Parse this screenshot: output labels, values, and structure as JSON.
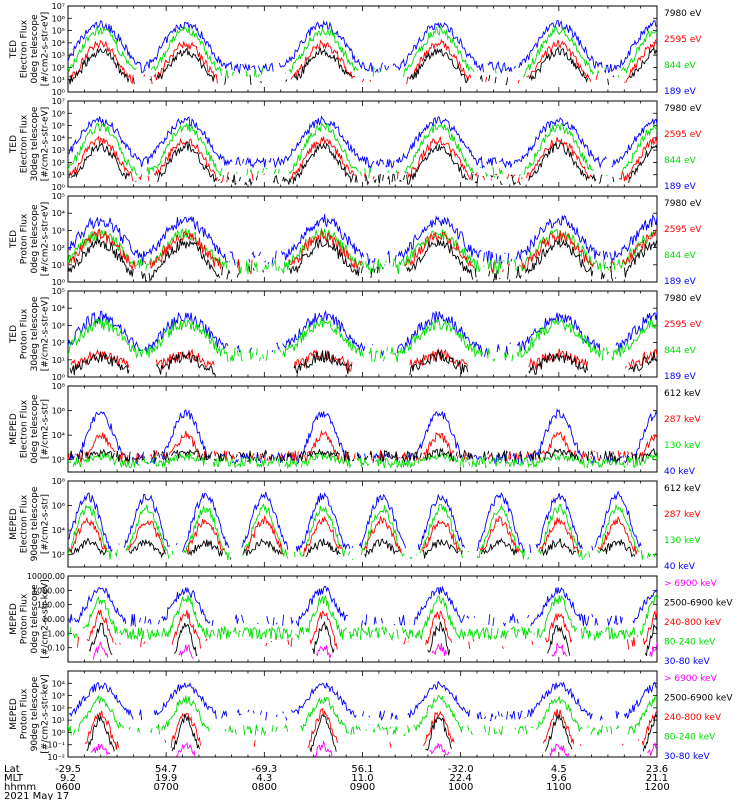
{
  "date_label": "2021 May 17",
  "colors": {
    "black": "#000000",
    "red": "#ff0000",
    "green": "#00dd00",
    "blue": "#0000ff",
    "magenta": "#ff00ff"
  },
  "footer": {
    "row_labels": [
      "Lat",
      "MLT",
      "hhmm"
    ],
    "columns": [
      {
        "lat": "-29.5",
        "mlt": "9.2",
        "hhmm": "0600"
      },
      {
        "lat": "54.7",
        "mlt": "19.9",
        "hhmm": "0700"
      },
      {
        "lat": "-69.3",
        "mlt": "4.3",
        "hhmm": "0800"
      },
      {
        "lat": "56.1",
        "mlt": "11.0",
        "hhmm": "0900"
      },
      {
        "lat": "-32.0",
        "mlt": "22.4",
        "hhmm": "1000"
      },
      {
        "lat": "4.5",
        "mlt": "9.6",
        "hhmm": "1100"
      },
      {
        "lat": "23.6",
        "mlt": "21.1",
        "hhmm": "1200"
      }
    ]
  },
  "chart_data": [
    {
      "type": "line",
      "ylabel": [
        "TED",
        "Electron Flux",
        "0deg telescope",
        "[#/cm2-s-str-eV]"
      ],
      "y_scale": "log",
      "ylim_exp": [
        0,
        7
      ],
      "y_ticks": [
        {
          "exp": 0,
          "text": "10⁰"
        },
        {
          "exp": 1,
          "text": "10¹"
        },
        {
          "exp": 2,
          "text": "10²"
        },
        {
          "exp": 3,
          "text": "10³"
        },
        {
          "exp": 4,
          "text": "10⁴"
        },
        {
          "exp": 5,
          "text": "10⁵"
        },
        {
          "exp": 6,
          "text": "10⁶"
        },
        {
          "exp": 7,
          "text": "10⁷"
        }
      ],
      "x_time_range": [
        "0600",
        "1200"
      ],
      "passes": [
        0.33,
        1.2,
        2.6,
        3.78,
        5.0,
        6.0
      ],
      "series": [
        {
          "name": "7980 eV",
          "color": "#000000",
          "peak": 3.3,
          "floor": 1.0,
          "floor_density": 0.25,
          "pass_width": 0.3
        },
        {
          "name": "2595 eV",
          "color": "#ff0000",
          "peak": 3.9,
          "floor": 1.0,
          "floor_density": 0.2,
          "pass_width": 0.33
        },
        {
          "name": "844 eV",
          "color": "#00dd00",
          "peak": 5.0,
          "floor": 1.6,
          "floor_density": 0.35,
          "pass_width": 0.36
        },
        {
          "name": "189 eV",
          "color": "#0000ff",
          "peak": 5.5,
          "floor": 2.0,
          "floor_density": 0.85,
          "pass_width": 0.42
        }
      ]
    },
    {
      "type": "line",
      "ylabel": [
        "TED",
        "Electron Flux",
        "30deg telescope",
        "[#/cm2-s-str-eV]"
      ],
      "y_scale": "log",
      "ylim_exp": [
        0,
        7
      ],
      "y_ticks": [
        {
          "exp": 0,
          "text": "10⁰"
        },
        {
          "exp": 1,
          "text": "10¹"
        },
        {
          "exp": 2,
          "text": "10²"
        },
        {
          "exp": 3,
          "text": "10³"
        },
        {
          "exp": 4,
          "text": "10⁴"
        },
        {
          "exp": 5,
          "text": "10⁵"
        },
        {
          "exp": 6,
          "text": "10⁶"
        },
        {
          "exp": 7,
          "text": "10⁷"
        }
      ],
      "x_time_range": [
        "0600",
        "1200"
      ],
      "passes": [
        0.33,
        1.2,
        2.6,
        3.78,
        5.0,
        6.0
      ],
      "series": [
        {
          "name": "7980 eV",
          "color": "#000000",
          "peak": 3.3,
          "floor": 0.6,
          "floor_density": 0.5,
          "pass_width": 0.3
        },
        {
          "name": "2595 eV",
          "color": "#ff0000",
          "peak": 3.8,
          "floor": 0.8,
          "floor_density": 0.4,
          "pass_width": 0.33
        },
        {
          "name": "844 eV",
          "color": "#00dd00",
          "peak": 4.9,
          "floor": 1.2,
          "floor_density": 0.4,
          "pass_width": 0.36
        },
        {
          "name": "189 eV",
          "color": "#0000ff",
          "peak": 5.4,
          "floor": 2.0,
          "floor_density": 0.85,
          "pass_width": 0.42
        }
      ]
    },
    {
      "type": "line",
      "ylabel": [
        "TED",
        "Proton Flux",
        "0deg telescope",
        "[#/cm2-s-str-eV]"
      ],
      "y_scale": "log",
      "ylim_exp": [
        0,
        5
      ],
      "y_ticks": [
        {
          "exp": 0,
          "text": "10⁰"
        },
        {
          "exp": 1,
          "text": "10¹"
        },
        {
          "exp": 2,
          "text": "10²"
        },
        {
          "exp": 3,
          "text": "10³"
        },
        {
          "exp": 4,
          "text": "10⁴"
        },
        {
          "exp": 5,
          "text": "10⁵"
        }
      ],
      "x_time_range": [
        "0600",
        "1200"
      ],
      "passes": [
        0.33,
        1.2,
        2.6,
        3.78,
        5.0,
        6.0
      ],
      "series": [
        {
          "name": "7980 eV",
          "color": "#000000",
          "peak": 2.3,
          "floor": 0.5,
          "floor_density": 0.5,
          "pass_width": 0.34
        },
        {
          "name": "2595 eV",
          "color": "#ff0000",
          "peak": 2.7,
          "floor": 0.9,
          "floor_density": 0.3,
          "pass_width": 0.36
        },
        {
          "name": "844 eV",
          "color": "#00dd00",
          "peak": 2.8,
          "floor": 0.9,
          "floor_density": 0.8,
          "pass_width": 0.4
        },
        {
          "name": "189 eV",
          "color": "#0000ff",
          "peak": 3.6,
          "floor": 1.4,
          "floor_density": 0.6,
          "pass_width": 0.42
        }
      ]
    },
    {
      "type": "line",
      "ylabel": [
        "TED",
        "Proton Flux",
        "30deg telescope",
        "[#/cm2-s-str-eV]"
      ],
      "y_scale": "log",
      "ylim_exp": [
        0,
        5
      ],
      "y_ticks": [
        {
          "exp": 0,
          "text": "10⁰"
        },
        {
          "exp": 1,
          "text": "10¹"
        },
        {
          "exp": 2,
          "text": "10²"
        },
        {
          "exp": 3,
          "text": "10³"
        },
        {
          "exp": 4,
          "text": "10⁴"
        },
        {
          "exp": 5,
          "text": "10⁵"
        }
      ],
      "x_time_range": [
        "0600",
        "1200"
      ],
      "passes": [
        0.33,
        1.2,
        2.6,
        3.78,
        5.0,
        6.0
      ],
      "series": [
        {
          "name": "7980 eV",
          "color": "#000000",
          "peak": 1.2,
          "floor": 0.3,
          "floor_density": 0.1,
          "pass_width": 0.3
        },
        {
          "name": "2595 eV",
          "color": "#ff0000",
          "peak": 1.3,
          "floor": 0.6,
          "floor_density": 0.06,
          "pass_width": 0.3
        },
        {
          "name": "844 eV",
          "color": "#00dd00",
          "peak": 3.1,
          "floor": 1.3,
          "floor_density": 0.5,
          "pass_width": 0.42
        },
        {
          "name": "189 eV",
          "color": "#0000ff",
          "peak": 3.5,
          "floor": 1.6,
          "floor_density": 0.4,
          "pass_width": 0.42
        }
      ]
    },
    {
      "type": "line",
      "ylabel": [
        "MEPED",
        "Electron Flux",
        "0deg telescope",
        "[#/cm2-s-str]"
      ],
      "y_scale": "log",
      "ylim_exp": [
        1,
        8
      ],
      "y_ticks": [
        {
          "exp": 2,
          "text": "10²"
        },
        {
          "exp": 4,
          "text": "10⁴"
        },
        {
          "exp": 6,
          "text": "10⁶"
        },
        {
          "exp": 8,
          "text": "10⁸"
        }
      ],
      "x_time_range": [
        "0600",
        "1200"
      ],
      "passes": [
        0.33,
        1.2,
        2.6,
        3.78,
        5.0,
        6.0
      ],
      "series": [
        {
          "name": "612 keV",
          "color": "#000000",
          "peak": 2.6,
          "floor": 2.3,
          "floor_density": 0.7,
          "pass_width": 0.14
        },
        {
          "name": "287 keV",
          "color": "#ff0000",
          "peak": 4.0,
          "floor": 2.3,
          "floor_density": 0.6,
          "pass_width": 0.16
        },
        {
          "name": "130 keV",
          "color": "#00dd00",
          "peak": 2.3,
          "floor": 1.8,
          "floor_density": 0.9,
          "pass_width": 0.2
        },
        {
          "name": "40 keV",
          "color": "#0000ff",
          "peak": 5.8,
          "floor": 2.1,
          "floor_density": 0.7,
          "pass_width": 0.25
        }
      ]
    },
    {
      "type": "line",
      "ylabel": [
        "MEPED",
        "Electron Flux",
        "90deg telescope",
        "[#/cm2-s-str]"
      ],
      "y_scale": "log",
      "ylim_exp": [
        1,
        8
      ],
      "y_ticks": [
        {
          "exp": 2,
          "text": "10²"
        },
        {
          "exp": 4,
          "text": "10⁴"
        },
        {
          "exp": 6,
          "text": "10⁶"
        },
        {
          "exp": 8,
          "text": "10⁸"
        }
      ],
      "x_time_range": [
        "0600",
        "1200"
      ],
      "passes": [
        0.2,
        0.8,
        1.4,
        2.0,
        2.6,
        3.2,
        3.8,
        4.4,
        5.0,
        5.6
      ],
      "series": [
        {
          "name": "612 keV",
          "color": "#000000",
          "peak": 3.0,
          "floor": 2.0,
          "floor_density": 0.2,
          "pass_width": 0.18
        },
        {
          "name": "287 keV",
          "color": "#ff0000",
          "peak": 4.8,
          "floor": 2.2,
          "floor_density": 0.15,
          "pass_width": 0.2
        },
        {
          "name": "130 keV",
          "color": "#00dd00",
          "peak": 5.8,
          "floor": 2.0,
          "floor_density": 0.5,
          "pass_width": 0.22
        },
        {
          "name": "40 keV",
          "color": "#0000ff",
          "peak": 6.8,
          "floor": 2.5,
          "floor_density": 0.3,
          "pass_width": 0.24
        }
      ]
    },
    {
      "type": "line",
      "ylabel": [
        "MEPED",
        "Proton Flux",
        "0deg telescope",
        "[#/cm2-s-str-keV]"
      ],
      "y_scale": "log",
      "ylim_exp": [
        -2,
        4
      ],
      "y_ticks": [
        {
          "exp": -1,
          "text": "0.10"
        },
        {
          "exp": 0,
          "text": "1.00"
        },
        {
          "exp": 1,
          "text": "10.00"
        },
        {
          "exp": 2,
          "text": "100.00"
        },
        {
          "exp": 3,
          "text": "1000.00"
        },
        {
          "exp": 4,
          "text": "10000.00"
        }
      ],
      "x_time_range": [
        "0600",
        "1200"
      ],
      "passes": [
        0.33,
        1.2,
        2.6,
        3.78,
        5.0,
        6.0
      ],
      "series": [
        {
          "name": "> 6900 keV",
          "color": "#ff00ff",
          "peak": -0.9,
          "floor": -1.6,
          "floor_density": 0.0,
          "pass_width": 0.08
        },
        {
          "name": "2500-6900 keV",
          "color": "#000000",
          "peak": 0.5,
          "floor": -1.5,
          "floor_density": 0.05,
          "pass_width": 0.12
        },
        {
          "name": "240-800 keV",
          "color": "#ff0000",
          "peak": 1.3,
          "floor": -0.7,
          "floor_density": 0.2,
          "pass_width": 0.14
        },
        {
          "name": "80-240 keV",
          "color": "#00dd00",
          "peak": 2.4,
          "floor": 0.0,
          "floor_density": 0.9,
          "pass_width": 0.18
        },
        {
          "name": "30-80 keV",
          "color": "#0000ff",
          "peak": 3.0,
          "floor": 0.9,
          "floor_density": 0.5,
          "pass_width": 0.25
        }
      ]
    },
    {
      "type": "line",
      "ylabel": [
        "MEPED",
        "Proton Flux",
        "90deg telescope",
        "[#/cm2-s-str-keV]"
      ],
      "y_scale": "log",
      "ylim_exp": [
        -2,
        5
      ],
      "y_ticks": [
        {
          "exp": -2,
          "text": "10⁻²"
        },
        {
          "exp": -1,
          "text": "10⁻¹"
        },
        {
          "exp": 0,
          "text": "10⁰"
        },
        {
          "exp": 1,
          "text": "10¹"
        },
        {
          "exp": 2,
          "text": "10²"
        },
        {
          "exp": 3,
          "text": "10³"
        },
        {
          "exp": 4,
          "text": "10⁴"
        }
      ],
      "x_time_range": [
        "0600",
        "1200"
      ],
      "passes": [
        0.33,
        1.2,
        2.6,
        3.78,
        5.0,
        6.0
      ],
      "series": [
        {
          "name": "> 6900 keV",
          "color": "#ff00ff",
          "peak": -1.1,
          "floor": -1.9,
          "floor_density": 0.0,
          "pass_width": 0.1
        },
        {
          "name": "2500-6900 keV",
          "color": "#000000",
          "peak": 1.2,
          "floor": -1.5,
          "floor_density": 0.05,
          "pass_width": 0.14
        },
        {
          "name": "240-800 keV",
          "color": "#ff0000",
          "peak": 1.6,
          "floor": -1.0,
          "floor_density": 0.15,
          "pass_width": 0.16
        },
        {
          "name": "80-240 keV",
          "color": "#00dd00",
          "peak": 2.7,
          "floor": 0.2,
          "floor_density": 0.6,
          "pass_width": 0.24
        },
        {
          "name": "30-80 keV",
          "color": "#0000ff",
          "peak": 3.8,
          "floor": 1.4,
          "floor_density": 0.5,
          "pass_width": 0.32
        }
      ]
    }
  ]
}
